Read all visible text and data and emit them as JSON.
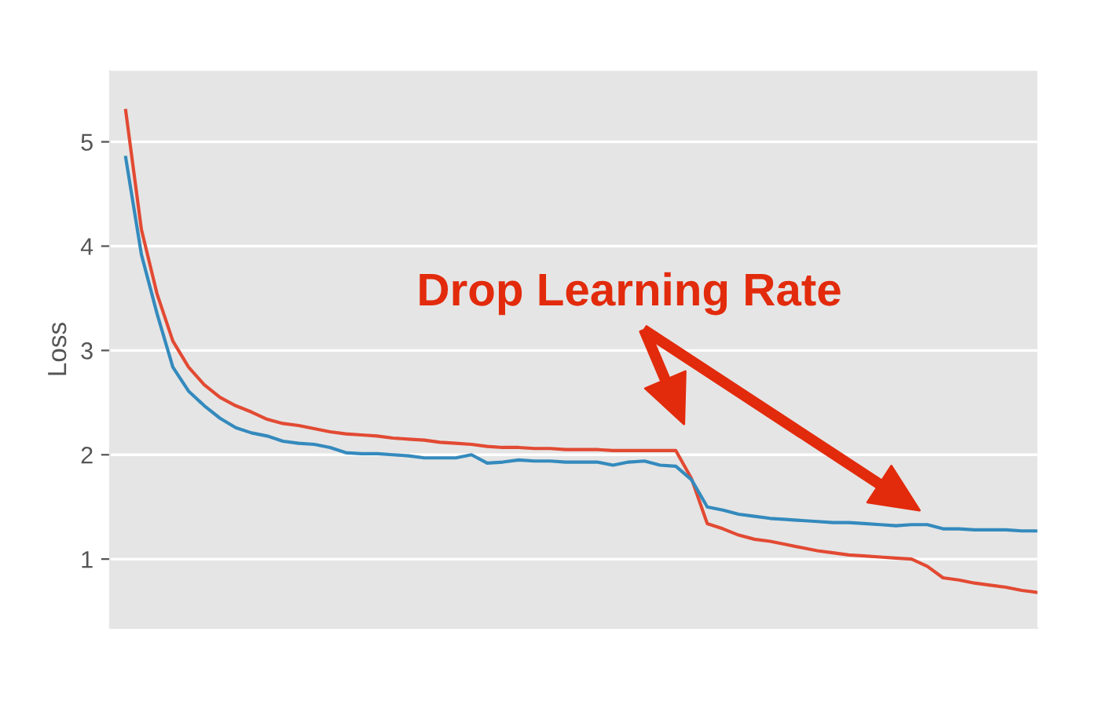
{
  "chart_data": {
    "type": "line",
    "ylabel": "Loss",
    "categories": [
      null,
      null,
      null,
      null,
      null,
      null,
      null,
      null,
      null,
      null,
      null,
      null,
      null,
      null,
      null,
      null,
      null,
      null,
      null,
      null,
      null,
      null,
      null,
      null,
      null,
      null,
      null,
      null,
      null,
      null,
      null,
      null,
      null,
      null,
      null,
      null,
      null,
      null,
      null,
      null,
      null,
      null,
      null,
      null,
      null,
      null,
      null,
      null,
      null,
      null,
      null,
      null,
      null,
      null,
      null,
      null,
      null,
      null,
      null,
      null
    ],
    "ylim": [
      0.34,
      5.68
    ],
    "yticks": [
      1,
      2,
      3,
      4,
      5
    ],
    "grid": "y",
    "marker": "none",
    "line_style": "solid",
    "series": [
      {
        "color": "#e24a33",
        "values": [
          null,
          5.3,
          4.16,
          3.54,
          3.09,
          2.84,
          2.67,
          2.55,
          2.47,
          2.41,
          2.34,
          2.3,
          2.28,
          2.25,
          2.22,
          2.2,
          2.19,
          2.18,
          2.16,
          2.15,
          2.14,
          2.12,
          2.11,
          2.1,
          2.08,
          2.07,
          2.07,
          2.06,
          2.06,
          2.05,
          2.05,
          2.05,
          2.04,
          2.04,
          2.04,
          2.04,
          2.04,
          1.77,
          1.34,
          1.29,
          1.23,
          1.19,
          1.17,
          1.14,
          1.11,
          1.08,
          1.06,
          1.04,
          1.03,
          1.02,
          1.01,
          1.0,
          0.93,
          0.82,
          0.8,
          0.77,
          0.75,
          0.73,
          0.7,
          0.68
        ]
      },
      {
        "color": "#348abd",
        "values": [
          null,
          4.85,
          3.92,
          3.35,
          2.84,
          2.61,
          2.47,
          2.35,
          2.26,
          2.21,
          2.18,
          2.13,
          2.11,
          2.1,
          2.07,
          2.02,
          2.01,
          2.01,
          2.0,
          1.99,
          1.97,
          1.97,
          1.97,
          2.0,
          1.92,
          1.93,
          1.95,
          1.94,
          1.94,
          1.93,
          1.93,
          1.93,
          1.9,
          1.93,
          1.94,
          1.9,
          1.89,
          1.76,
          1.5,
          1.47,
          1.43,
          1.41,
          1.39,
          1.38,
          1.37,
          1.36,
          1.35,
          1.35,
          1.34,
          1.33,
          1.32,
          1.33,
          1.33,
          1.29,
          1.29,
          1.28,
          1.28,
          1.28,
          1.27,
          1.27
        ]
      }
    ],
    "annotations": [
      "Drop Learning Rate"
    ]
  }
}
